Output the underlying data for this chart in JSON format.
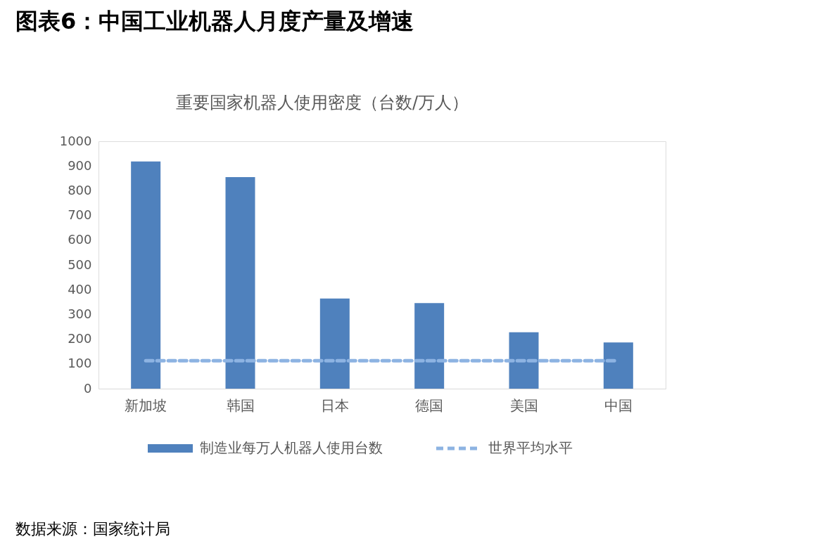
{
  "chart_data": {
    "type": "bar",
    "title": "图表6：中国工业机器人月度产量及增速",
    "subtitle": "重要国家机器人使用密度（台数/万人）",
    "categories": [
      "新加坡",
      "韩国",
      "日本",
      "德国",
      "美国",
      "中国"
    ],
    "series": [
      {
        "name": "制造业每万人机器人使用台数",
        "color": "#4f81bd",
        "values": [
          918,
          855,
          364,
          346,
          228,
          187
        ]
      },
      {
        "name": "世界平均水平",
        "type": "line",
        "line_style": "dashed",
        "color": "#8db3e2",
        "values": [
          113,
          113,
          113,
          113,
          113,
          113
        ]
      }
    ],
    "ylim": [
      0,
      1000
    ],
    "yticks": [
      0,
      100,
      200,
      300,
      400,
      500,
      600,
      700,
      800,
      900,
      1000
    ],
    "grid": false,
    "legend": "bottom",
    "annotations": [
      "数据来源：国家统计局"
    ]
  }
}
